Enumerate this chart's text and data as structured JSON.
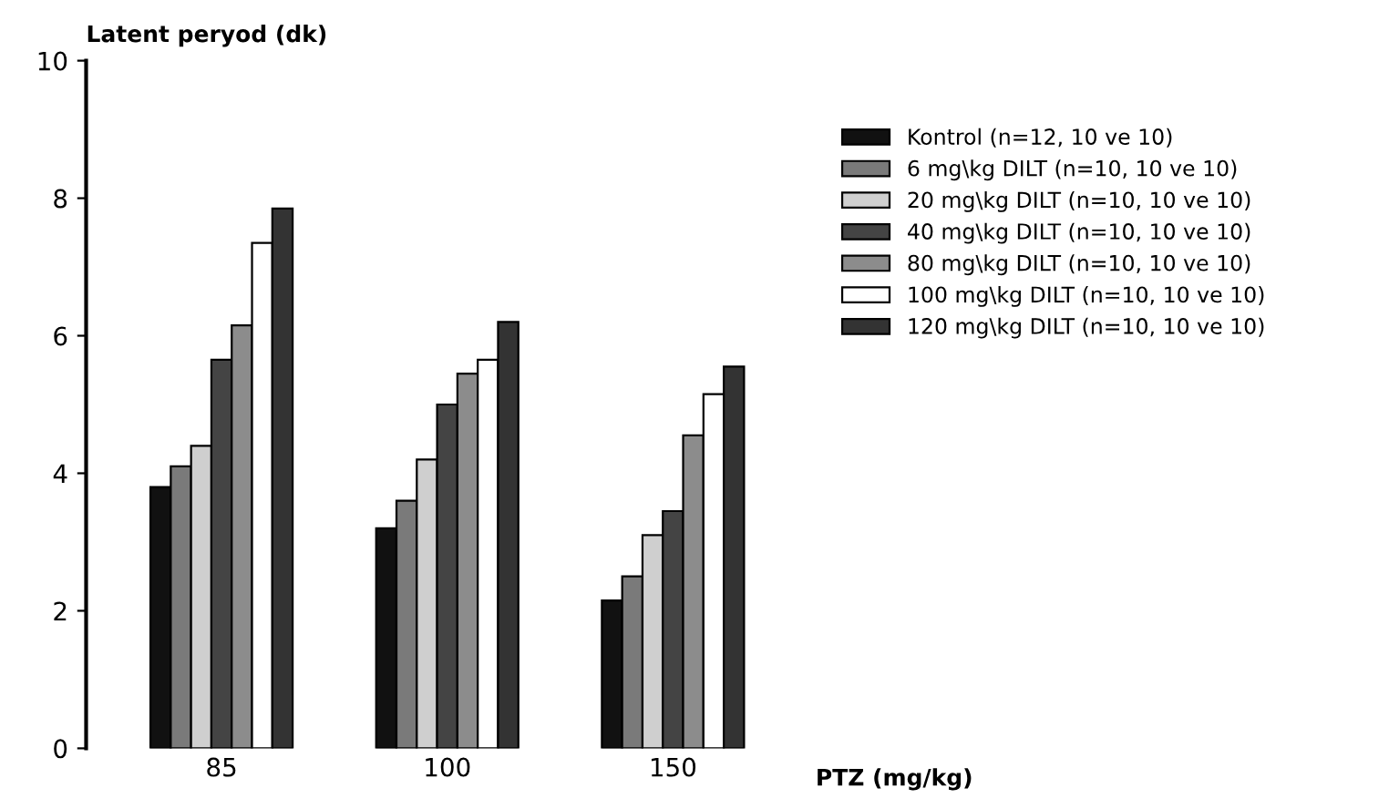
{
  "chart_data": {
    "type": "bar",
    "ylabel": "Latent peryod (dk)",
    "xlabel": "PTZ (mg/kg)",
    "categories": [
      "85",
      "100",
      "150"
    ],
    "ylim": [
      0,
      10
    ],
    "yticks": [
      0,
      2,
      4,
      6,
      8,
      10
    ],
    "grid": false,
    "legend": "top right",
    "series": [
      {
        "name": "Kontrol (n=12, 10 ve 10)",
        "color": "#111111",
        "values": [
          3.8,
          3.2,
          2.15
        ]
      },
      {
        "name": "6 mg\\kg DILT (n=10, 10 ve 10)",
        "color": "#7a7a7a",
        "values": [
          4.1,
          3.6,
          2.5
        ]
      },
      {
        "name": "20 mg\\kg DILT (n=10, 10 ve 10)",
        "color": "#cfcfcf",
        "values": [
          4.4,
          4.2,
          3.1
        ]
      },
      {
        "name": "40 mg\\kg DILT (n=10, 10 ve 10)",
        "color": "#444444",
        "values": [
          5.65,
          5.0,
          3.45
        ]
      },
      {
        "name": "80 mg\\kg DILT (n=10, 10 ve 10)",
        "color": "#8c8c8c",
        "values": [
          6.15,
          5.45,
          4.55
        ]
      },
      {
        "name": "100 mg\\kg DILT (n=10, 10 ve 10)",
        "color": "#ffffff",
        "values": [
          7.35,
          5.65,
          5.15
        ]
      },
      {
        "name": "120 mg\\kg DILT (n=10, 10 ve 10)",
        "color": "#333333",
        "values": [
          7.85,
          6.2,
          5.55
        ]
      }
    ]
  }
}
